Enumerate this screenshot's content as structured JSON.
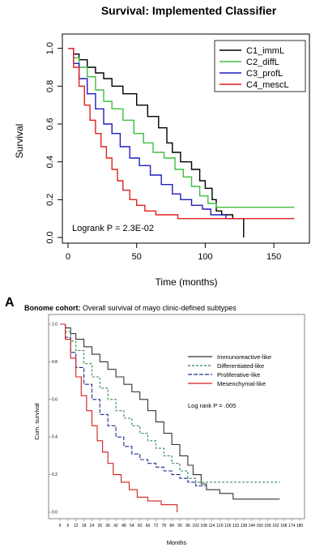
{
  "chart_data": [
    {
      "type": "line",
      "title": "Survival: Implemented Classifier",
      "xlabel": "Time (months)",
      "ylabel": "Survival",
      "xlim": [
        0,
        170
      ],
      "ylim": [
        0,
        1.05
      ],
      "xticks": [
        "0",
        "50",
        "100",
        "150"
      ],
      "yticks": [
        "0.0",
        "0.2",
        "0.4",
        "0.6",
        "0.8",
        "1.0"
      ],
      "annotation": "Logrank P = 2.3E-02",
      "legend_position": "top-right",
      "series": [
        {
          "name": "C1_immL",
          "color": "#000000",
          "points": [
            [
              0,
              1.0
            ],
            [
              4,
              0.97
            ],
            [
              8,
              0.94
            ],
            [
              14,
              0.9
            ],
            [
              20,
              0.87
            ],
            [
              26,
              0.84
            ],
            [
              32,
              0.8
            ],
            [
              40,
              0.76
            ],
            [
              50,
              0.7
            ],
            [
              58,
              0.64
            ],
            [
              66,
              0.58
            ],
            [
              72,
              0.5
            ],
            [
              76,
              0.45
            ],
            [
              82,
              0.4
            ],
            [
              90,
              0.36
            ],
            [
              96,
              0.3
            ],
            [
              100,
              0.26
            ],
            [
              105,
              0.2
            ],
            [
              108,
              0.14
            ],
            [
              112,
              0.12
            ],
            [
              120,
              0.1
            ],
            [
              128,
              0.08
            ],
            [
              128,
              0.0
            ]
          ]
        },
        {
          "name": "C2_diffL",
          "color": "#3fbf3f",
          "points": [
            [
              0,
              1.0
            ],
            [
              4,
              0.95
            ],
            [
              8,
              0.9
            ],
            [
              14,
              0.85
            ],
            [
              20,
              0.78
            ],
            [
              26,
              0.72
            ],
            [
              32,
              0.68
            ],
            [
              40,
              0.62
            ],
            [
              48,
              0.55
            ],
            [
              55,
              0.5
            ],
            [
              62,
              0.45
            ],
            [
              70,
              0.42
            ],
            [
              78,
              0.36
            ],
            [
              84,
              0.32
            ],
            [
              90,
              0.27
            ],
            [
              96,
              0.22
            ],
            [
              102,
              0.18
            ],
            [
              108,
              0.16
            ],
            [
              165,
              0.16
            ]
          ]
        },
        {
          "name": "C3_profL",
          "color": "#1f1fbf",
          "points": [
            [
              0,
              1.0
            ],
            [
              4,
              0.92
            ],
            [
              8,
              0.84
            ],
            [
              14,
              0.76
            ],
            [
              20,
              0.68
            ],
            [
              26,
              0.6
            ],
            [
              32,
              0.55
            ],
            [
              38,
              0.48
            ],
            [
              45,
              0.42
            ],
            [
              52,
              0.38
            ],
            [
              60,
              0.33
            ],
            [
              68,
              0.28
            ],
            [
              76,
              0.23
            ],
            [
              82,
              0.2
            ],
            [
              90,
              0.17
            ],
            [
              98,
              0.15
            ],
            [
              104,
              0.12
            ],
            [
              115,
              0.1
            ],
            [
              125,
              0.1
            ]
          ]
        },
        {
          "name": "C4_mescL",
          "color": "#e02020",
          "points": [
            [
              0,
              1.0
            ],
            [
              4,
              0.9
            ],
            [
              8,
              0.8
            ],
            [
              12,
              0.7
            ],
            [
              16,
              0.62
            ],
            [
              20,
              0.55
            ],
            [
              24,
              0.48
            ],
            [
              28,
              0.42
            ],
            [
              32,
              0.36
            ],
            [
              36,
              0.3
            ],
            [
              40,
              0.25
            ],
            [
              45,
              0.2
            ],
            [
              50,
              0.17
            ],
            [
              56,
              0.14
            ],
            [
              64,
              0.12
            ],
            [
              80,
              0.1
            ],
            [
              165,
              0.1
            ]
          ]
        }
      ]
    },
    {
      "type": "line",
      "panel_label": "A",
      "title_bold": "Bonome cohort:",
      "title_rest": " Overall survival of mayo clinic-defined subtypes",
      "xlabel": "Months",
      "ylabel": "Cum. survival",
      "xlim": [
        0,
        180
      ],
      "ylim": [
        0,
        1.0
      ],
      "xticks": [
        "0",
        "6",
        "12",
        "18",
        "24",
        "30",
        "36",
        "42",
        "48",
        "54",
        "60",
        "66",
        "72",
        "78",
        "84",
        "90",
        "96",
        "102",
        "108",
        "114",
        "120",
        "126",
        "132",
        "138",
        "144",
        "150",
        "156",
        "162",
        "168",
        "174",
        "180"
      ],
      "yticks": [
        "0.0",
        "0.2",
        "0.4",
        "0.6",
        "0.8",
        "1.0"
      ],
      "annotation": "Log rank P = .005",
      "legend_position": "top-right",
      "series": [
        {
          "name": "Immunoreactive-like",
          "color": "#333333",
          "dash": "",
          "points": [
            [
              0,
              1.0
            ],
            [
              4,
              0.98
            ],
            [
              8,
              0.95
            ],
            [
              12,
              0.92
            ],
            [
              18,
              0.88
            ],
            [
              24,
              0.84
            ],
            [
              30,
              0.8
            ],
            [
              36,
              0.76
            ],
            [
              42,
              0.72
            ],
            [
              48,
              0.68
            ],
            [
              54,
              0.64
            ],
            [
              60,
              0.6
            ],
            [
              66,
              0.54
            ],
            [
              72,
              0.48
            ],
            [
              78,
              0.42
            ],
            [
              84,
              0.36
            ],
            [
              90,
              0.3
            ],
            [
              96,
              0.25
            ],
            [
              100,
              0.2
            ],
            [
              106,
              0.15
            ],
            [
              110,
              0.12
            ],
            [
              120,
              0.1
            ],
            [
              130,
              0.07
            ],
            [
              165,
              0.07
            ]
          ]
        },
        {
          "name": "Differentiated-like",
          "color": "#2e8b57",
          "dash": "3,2",
          "points": [
            [
              0,
              1.0
            ],
            [
              4,
              0.96
            ],
            [
              8,
              0.91
            ],
            [
              12,
              0.86
            ],
            [
              18,
              0.79
            ],
            [
              24,
              0.72
            ],
            [
              30,
              0.66
            ],
            [
              36,
              0.6
            ],
            [
              42,
              0.54
            ],
            [
              48,
              0.5
            ],
            [
              54,
              0.46
            ],
            [
              60,
              0.42
            ],
            [
              66,
              0.38
            ],
            [
              72,
              0.34
            ],
            [
              78,
              0.3
            ],
            [
              84,
              0.26
            ],
            [
              90,
              0.22
            ],
            [
              96,
              0.18
            ],
            [
              102,
              0.16
            ],
            [
              165,
              0.16
            ]
          ]
        },
        {
          "name": "Proliferative-like",
          "color": "#1f2d8c",
          "dash": "5,2",
          "points": [
            [
              0,
              1.0
            ],
            [
              4,
              0.93
            ],
            [
              8,
              0.85
            ],
            [
              12,
              0.77
            ],
            [
              18,
              0.68
            ],
            [
              24,
              0.6
            ],
            [
              30,
              0.52
            ],
            [
              36,
              0.46
            ],
            [
              42,
              0.4
            ],
            [
              48,
              0.35
            ],
            [
              54,
              0.31
            ],
            [
              60,
              0.28
            ],
            [
              66,
              0.26
            ],
            [
              72,
              0.24
            ],
            [
              78,
              0.22
            ],
            [
              84,
              0.2
            ],
            [
              90,
              0.18
            ],
            [
              96,
              0.16
            ],
            [
              102,
              0.14
            ],
            [
              110,
              0.14
            ]
          ]
        },
        {
          "name": "Mesenchymal-like",
          "color": "#d21f1f",
          "dash": "",
          "points": [
            [
              0,
              1.0
            ],
            [
              4,
              0.92
            ],
            [
              8,
              0.82
            ],
            [
              12,
              0.72
            ],
            [
              16,
              0.62
            ],
            [
              20,
              0.54
            ],
            [
              24,
              0.46
            ],
            [
              28,
              0.38
            ],
            [
              32,
              0.32
            ],
            [
              36,
              0.26
            ],
            [
              40,
              0.2
            ],
            [
              46,
              0.16
            ],
            [
              52,
              0.12
            ],
            [
              58,
              0.08
            ],
            [
              66,
              0.06
            ],
            [
              76,
              0.04
            ],
            [
              84,
              0.04
            ],
            [
              88,
              0.0
            ]
          ]
        }
      ]
    }
  ]
}
